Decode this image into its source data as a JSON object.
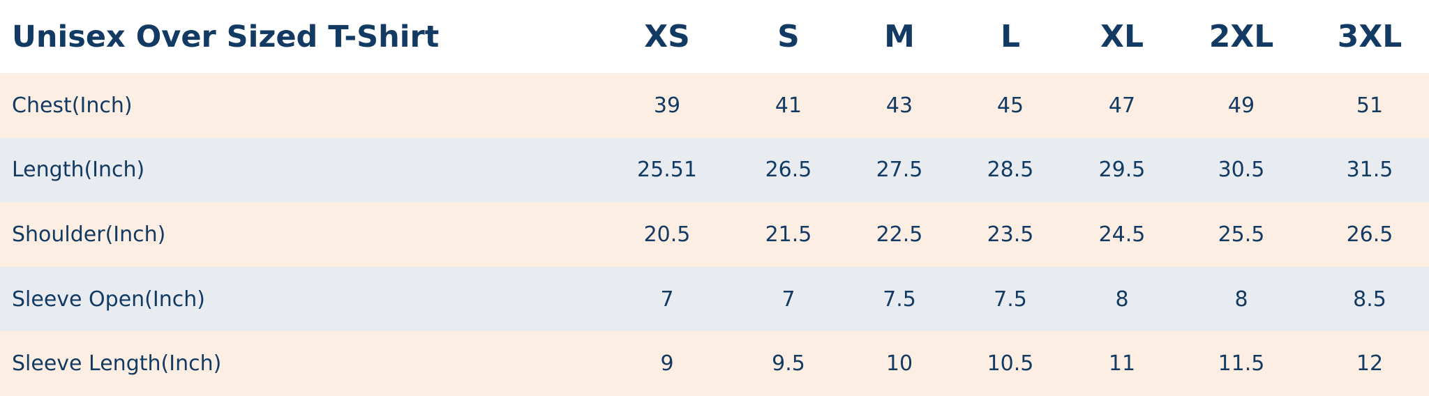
{
  "table": {
    "title": "Unisex Over Sized T-Shirt",
    "sizes": [
      "XS",
      "S",
      "M",
      "L",
      "XL",
      "2XL",
      "3XL"
    ],
    "rows": [
      {
        "label": "Chest(Inch)",
        "values": [
          39,
          41,
          43,
          45,
          47,
          49,
          51
        ]
      },
      {
        "label": "Length(Inch)",
        "values": [
          25.51,
          26.5,
          27.5,
          28.5,
          29.5,
          30.5,
          31.5
        ]
      },
      {
        "label": "Shoulder(Inch)",
        "values": [
          20.5,
          21.5,
          22.5,
          23.5,
          24.5,
          25.5,
          26.5
        ]
      },
      {
        "label": "Sleeve Open(Inch)",
        "values": [
          7,
          7,
          7.5,
          7.5,
          8,
          8,
          8.5
        ]
      },
      {
        "label": "Sleeve Length(Inch)",
        "values": [
          9,
          9.5,
          10,
          10.5,
          11,
          11.5,
          12
        ]
      }
    ]
  }
}
